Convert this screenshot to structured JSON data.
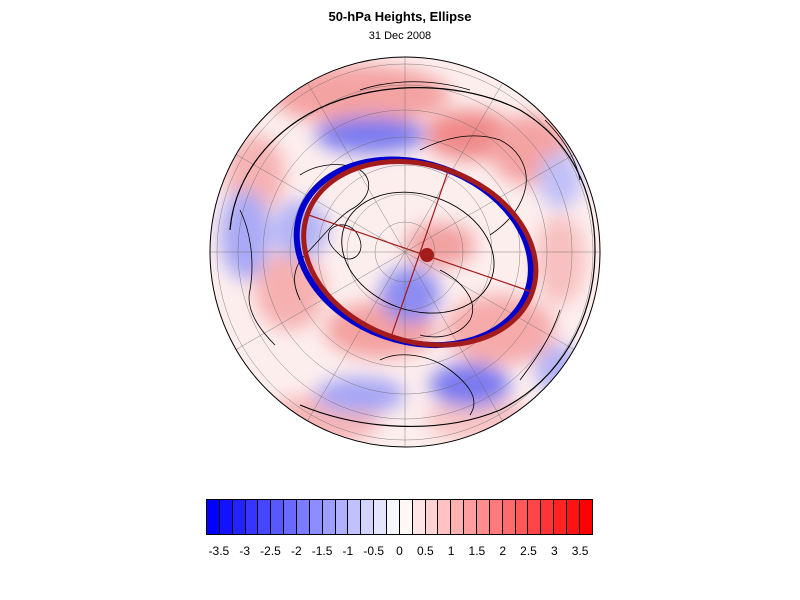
{
  "header": {
    "title": "50-hPa Heights, Ellipse",
    "date": "31 Dec 2008"
  },
  "colors": {
    "negative_max": "#0000ff",
    "neutral": "#ffffff",
    "positive_max": "#ff0000",
    "ellipse_blue": "#0000cc",
    "ellipse_red": "#a31b1b",
    "coastline": "#000000",
    "graticule": "#555555"
  },
  "colorbar": {
    "min": -3.75,
    "max": 3.75,
    "step": 0.25,
    "tick_labels": [
      "-3.5",
      "-3",
      "-2.5",
      "-2",
      "-1.5",
      "-1",
      "-0.5",
      "0",
      "0.5",
      "1",
      "1.5",
      "2",
      "2.5",
      "3",
      "3.5"
    ],
    "tick_values": [
      -3.5,
      -3,
      -2.5,
      -2,
      -1.5,
      -1,
      -0.5,
      0,
      0.5,
      1,
      1.5,
      2,
      2.5,
      3,
      3.5
    ]
  },
  "map": {
    "projection": "orthographic-north-polar",
    "graticule": true,
    "vortex_ellipses": [
      {
        "name": "blue-ellipse",
        "color": "#0000cc"
      },
      {
        "name": "red-ellipse",
        "color": "#a31b1b"
      }
    ],
    "vortex_center_marker": true
  }
}
